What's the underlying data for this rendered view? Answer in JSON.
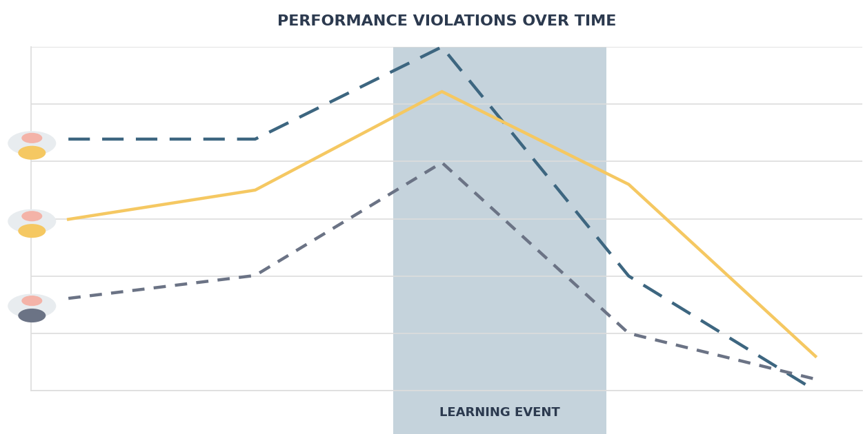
{
  "chart_data": {
    "type": "line",
    "title": "PERFORMANCE VIOLATIONS OVER TIME",
    "x": [
      0,
      1,
      2,
      3,
      4
    ],
    "xlim": [
      -0.2,
      4.25
    ],
    "xticks": [],
    "ylim": [
      0,
      6
    ],
    "yticks": [
      0,
      1,
      2,
      3,
      4,
      5,
      6
    ],
    "grid": true,
    "tick_labels": false,
    "series": [
      {
        "color": "#3d6680",
        "line_style": "dashed",
        "values": [
          4.39,
          4.39,
          6.0,
          2.0,
          0.0
        ]
      },
      {
        "color": "#f5c862",
        "line_style": "solid",
        "values": [
          2.99,
          3.5,
          5.22,
          3.6,
          0.6
        ]
      },
      {
        "color": "#6b7385",
        "line_style": "dotted",
        "values": [
          1.61,
          2.01,
          3.98,
          1.0,
          0.2
        ]
      }
    ],
    "annotations": [
      {
        "text": "LEARNING EVENT",
        "x_start": 1.74,
        "x_end": 2.88
      }
    ]
  }
}
